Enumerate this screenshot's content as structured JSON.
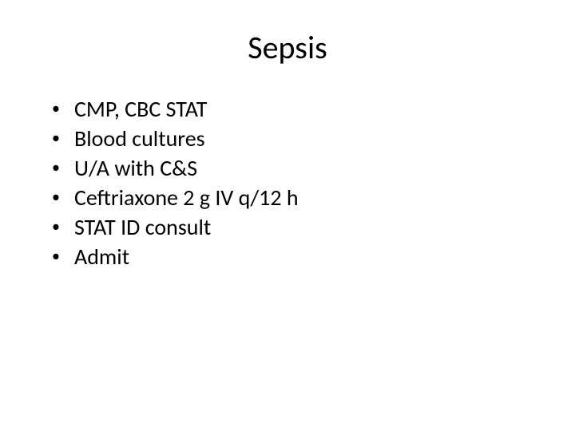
{
  "slide": {
    "title": "Sepsis",
    "bullets": [
      "CMP, CBC STAT",
      "Blood cultures",
      "U/A with C&S",
      "Ceftriaxone 2 g IV q/12 h",
      "STAT ID consult",
      "Admit"
    ],
    "title_fontsize": 40,
    "bullet_fontsize": 28,
    "background_color": "#ffffff",
    "text_color": "#000000",
    "font_family": "Calibri"
  }
}
